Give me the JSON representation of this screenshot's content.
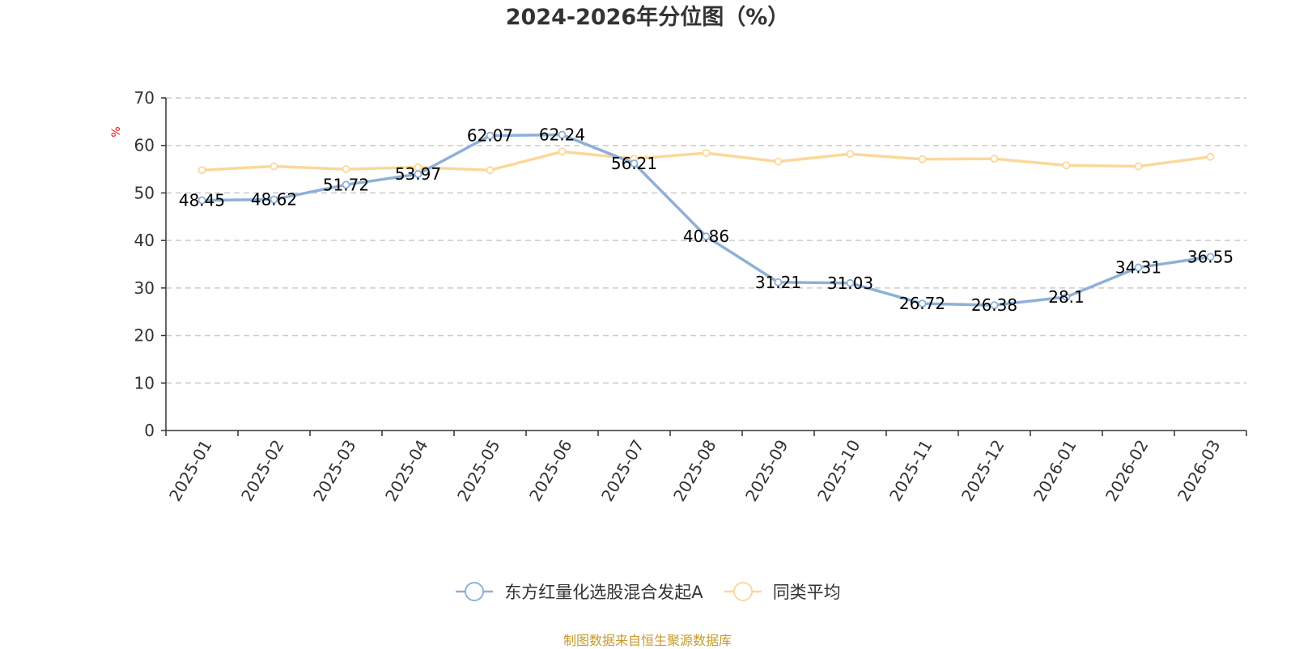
{
  "chart_data": {
    "type": "line",
    "title": "2024-2026年分位图（%）",
    "ylabel": "%",
    "xlabel": "",
    "categories": [
      "2025-01",
      "2025-02",
      "2025-03",
      "2025-04",
      "2025-05",
      "2025-06",
      "2025-07",
      "2025-08",
      "2025-09",
      "2025-10",
      "2025-11",
      "2025-12",
      "2026-01",
      "2026-02",
      "2026-03"
    ],
    "ylim": [
      0,
      70
    ],
    "yticks": [
      0,
      10,
      20,
      30,
      40,
      50,
      60,
      70
    ],
    "grid": true,
    "legend_position": "bottom",
    "series": [
      {
        "name": "东方红量化选股混合发起A",
        "color": "#8eb0d8",
        "values": [
          48.45,
          48.62,
          51.72,
          53.97,
          62.07,
          62.24,
          56.21,
          40.86,
          31.21,
          31.03,
          26.72,
          26.38,
          28.1,
          34.31,
          36.55
        ],
        "labels": [
          "48.45",
          "48.62",
          "51.72",
          "53.97",
          "62.07",
          "62.24",
          "56.21",
          "40.86",
          "31.21",
          "31.03",
          "26.72",
          "26.38",
          "28.1",
          "34.31",
          "36.55"
        ]
      },
      {
        "name": "同类平均",
        "color": "#fbd899",
        "values": [
          54.8,
          55.6,
          55.0,
          55.4,
          54.8,
          58.7,
          57.2,
          58.4,
          56.6,
          58.2,
          57.1,
          57.2,
          55.8,
          55.6,
          57.6
        ]
      }
    ]
  },
  "source": "制图数据来自恒生聚源数据库"
}
